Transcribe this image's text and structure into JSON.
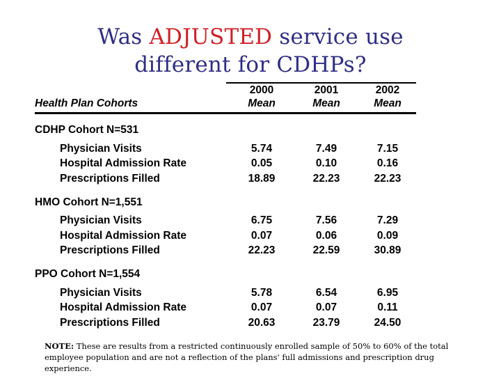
{
  "title": {
    "prefix": "Was ",
    "highlight": "ADJUSTED",
    "suffix": " service use",
    "line2": "different for CDHPs?"
  },
  "colors": {
    "title_navy": "#2e2e85",
    "title_red": "#d01f24",
    "table_text": "#000000",
    "background": "#ffffff"
  },
  "table": {
    "row_header": "Health Plan Cohorts",
    "columns": [
      {
        "year": "2000",
        "sub": "Mean"
      },
      {
        "year": "2001",
        "sub": "Mean"
      },
      {
        "year": "2002",
        "sub": "Mean"
      }
    ],
    "sections": [
      {
        "label": "CDHP Cohort N=531",
        "rows": [
          {
            "label": "Physician Visits",
            "values": [
              "5.74",
              "7.49",
              "7.15"
            ]
          },
          {
            "label": "Hospital Admission Rate",
            "values": [
              "0.05",
              "0.10",
              "0.16"
            ]
          },
          {
            "label": "Prescriptions Filled",
            "values": [
              "18.89",
              "22.23",
              "22.23"
            ]
          }
        ]
      },
      {
        "label": "HMO Cohort N=1,551",
        "rows": [
          {
            "label": "Physician Visits",
            "values": [
              "6.75",
              "7.56",
              "7.29"
            ]
          },
          {
            "label": "Hospital Admission Rate",
            "values": [
              "0.07",
              "0.06",
              "0.09"
            ]
          },
          {
            "label": "Prescriptions Filled",
            "values": [
              "22.23",
              "22.59",
              "30.89"
            ]
          }
        ]
      },
      {
        "label": "PPO Cohort N=1,554",
        "rows": [
          {
            "label": "Physician Visits",
            "values": [
              "5.78",
              "6.54",
              "6.95"
            ]
          },
          {
            "label": "Hospital Admission Rate",
            "values": [
              "0.07",
              "0.07",
              "0.11"
            ]
          },
          {
            "label": "Prescriptions Filled",
            "values": [
              "20.63",
              "23.79",
              "24.50"
            ]
          }
        ]
      }
    ]
  },
  "note": {
    "label": "NOTE:",
    "text": " These are results from a restricted continuously enrolled sample of 50% to 60% of the total employee population and are not a reflection of the plans' full admissions and prescription drug experience."
  }
}
